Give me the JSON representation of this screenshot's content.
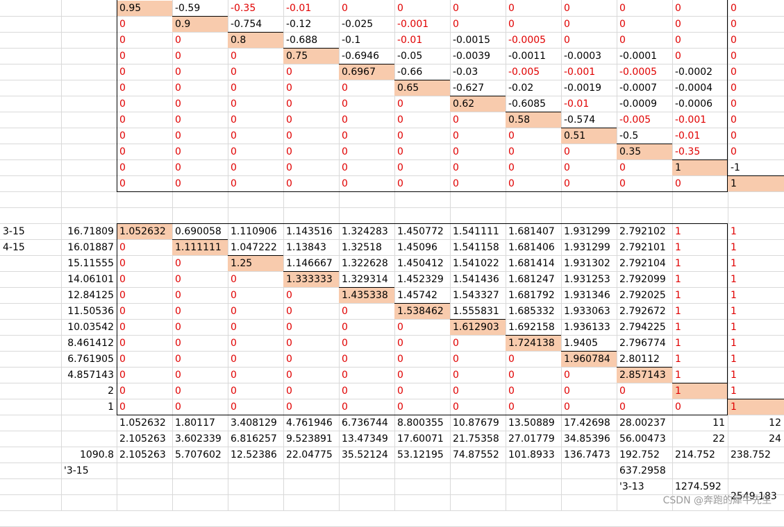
{
  "matrix_a": {
    "rows": [
      [
        "0.95",
        "-0.59",
        "-0.35",
        "-0.01",
        "0",
        "0",
        "0",
        "0",
        "0",
        "0",
        "0",
        "0"
      ],
      [
        "0",
        "0.9",
        "-0.754",
        "-0.12",
        "-0.025",
        "-0.001",
        "0",
        "0",
        "0",
        "0",
        "0",
        "0"
      ],
      [
        "0",
        "0",
        "0.8",
        "-0.688",
        "-0.1",
        "-0.01",
        "-0.0015",
        "-0.0005",
        "0",
        "0",
        "0",
        "0"
      ],
      [
        "0",
        "0",
        "0",
        "0.75",
        "-0.6946",
        "-0.05",
        "-0.0039",
        "-0.0011",
        "-0.0003",
        "-0.0001",
        "0",
        "0"
      ],
      [
        "0",
        "0",
        "0",
        "0",
        "0.6967",
        "-0.66",
        "-0.03",
        "-0.005",
        "-0.001",
        "-0.0005",
        "-0.0002",
        "0"
      ],
      [
        "0",
        "0",
        "0",
        "0",
        "0",
        "0.65",
        "-0.627",
        "-0.02",
        "-0.0019",
        "-0.0007",
        "-0.0004",
        "0"
      ],
      [
        "0",
        "0",
        "0",
        "0",
        "0",
        "0",
        "0.62",
        "-0.6085",
        "-0.01",
        "-0.0009",
        "-0.0006",
        "0"
      ],
      [
        "0",
        "0",
        "0",
        "0",
        "0",
        "0",
        "0",
        "0.58",
        "-0.574",
        "-0.005",
        "-0.001",
        "0"
      ],
      [
        "0",
        "0",
        "0",
        "0",
        "0",
        "0",
        "0",
        "0",
        "0.51",
        "-0.5",
        "-0.01",
        "0"
      ],
      [
        "0",
        "0",
        "0",
        "0",
        "0",
        "0",
        "0",
        "0",
        "0",
        "0.35",
        "-0.35",
        "0"
      ],
      [
        "0",
        "0",
        "0",
        "0",
        "0",
        "0",
        "0",
        "0",
        "0",
        "0",
        "1",
        "-1"
      ],
      [
        "0",
        "0",
        "0",
        "0",
        "0",
        "0",
        "0",
        "0",
        "0",
        "0",
        "0",
        "1"
      ]
    ],
    "red": [
      [
        0,
        0,
        1,
        1,
        1,
        1,
        1,
        1,
        1,
        1,
        1,
        1
      ],
      [
        1,
        0,
        0,
        0,
        0,
        1,
        1,
        1,
        1,
        1,
        1,
        1
      ],
      [
        1,
        1,
        0,
        0,
        0,
        1,
        0,
        1,
        1,
        1,
        1,
        1
      ],
      [
        1,
        1,
        1,
        0,
        0,
        0,
        0,
        0,
        0,
        0,
        1,
        1
      ],
      [
        1,
        1,
        1,
        1,
        0,
        0,
        0,
        1,
        1,
        1,
        0,
        1
      ],
      [
        1,
        1,
        1,
        1,
        1,
        0,
        0,
        0,
        0,
        0,
        0,
        1
      ],
      [
        1,
        1,
        1,
        1,
        1,
        1,
        0,
        0,
        1,
        0,
        0,
        1
      ],
      [
        1,
        1,
        1,
        1,
        1,
        1,
        1,
        0,
        0,
        1,
        1,
        1
      ],
      [
        1,
        1,
        1,
        1,
        1,
        1,
        1,
        1,
        0,
        0,
        1,
        1
      ],
      [
        1,
        1,
        1,
        1,
        1,
        1,
        1,
        1,
        1,
        0,
        1,
        1
      ],
      [
        1,
        1,
        1,
        1,
        1,
        1,
        1,
        1,
        1,
        1,
        0,
        0
      ],
      [
        1,
        1,
        1,
        1,
        1,
        1,
        1,
        1,
        1,
        1,
        1,
        0
      ]
    ]
  },
  "matrix_b": {
    "row_labels": [
      "3-15",
      "4-15",
      "",
      "",
      "",
      "",
      "",
      "",
      "",
      "",
      "",
      ""
    ],
    "row_values": [
      "16.71809",
      "16.01887",
      "15.11555",
      "14.06101",
      "12.84125",
      "11.50536",
      "10.03542",
      "8.461412",
      "6.761905",
      "4.857143",
      "2",
      "1"
    ],
    "rows": [
      [
        "1.052632",
        "0.690058",
        "1.110906",
        "1.143516",
        "1.324283",
        "1.450772",
        "1.541111",
        "1.681407",
        "1.931299",
        "2.792102",
        "1",
        "1"
      ],
      [
        "0",
        "1.111111",
        "1.047222",
        "1.13843",
        "1.32518",
        "1.45096",
        "1.541158",
        "1.681406",
        "1.931299",
        "2.792101",
        "1",
        "1"
      ],
      [
        "0",
        "0",
        "1.25",
        "1.146667",
        "1.322628",
        "1.450412",
        "1.541022",
        "1.681414",
        "1.931302",
        "2.792104",
        "1",
        "1"
      ],
      [
        "0",
        "0",
        "0",
        "1.333333",
        "1.329314",
        "1.452329",
        "1.541436",
        "1.681247",
        "1.931253",
        "2.792099",
        "1",
        "1"
      ],
      [
        "0",
        "0",
        "0",
        "0",
        "1.435338",
        "1.45742",
        "1.543327",
        "1.681792",
        "1.931346",
        "2.792025",
        "1",
        "1"
      ],
      [
        "0",
        "0",
        "0",
        "0",
        "0",
        "1.538462",
        "1.555831",
        "1.685332",
        "1.933063",
        "2.792672",
        "1",
        "1"
      ],
      [
        "0",
        "0",
        "0",
        "0",
        "0",
        "0",
        "1.612903",
        "1.692158",
        "1.936133",
        "2.794225",
        "1",
        "1"
      ],
      [
        "0",
        "0",
        "0",
        "0",
        "0",
        "0",
        "0",
        "1.724138",
        "1.9405",
        "2.796774",
        "1",
        "1"
      ],
      [
        "0",
        "0",
        "0",
        "0",
        "0",
        "0",
        "0",
        "0",
        "1.960784",
        "2.80112",
        "1",
        "1"
      ],
      [
        "0",
        "0",
        "0",
        "0",
        "0",
        "0",
        "0",
        "0",
        "0",
        "2.857143",
        "1",
        "1"
      ],
      [
        "0",
        "0",
        "0",
        "0",
        "0",
        "0",
        "0",
        "0",
        "0",
        "0",
        "1",
        "1"
      ],
      [
        "0",
        "0",
        "0",
        "0",
        "0",
        "0",
        "0",
        "0",
        "0",
        "0",
        "0",
        "1"
      ]
    ]
  },
  "totals": {
    "row1": [
      "1.052632",
      "1.80117",
      "3.408129",
      "4.761946",
      "6.736744",
      "8.800355",
      "10.87679",
      "13.50889",
      "17.42698",
      "28.00237",
      "11",
      "12"
    ],
    "row2": [
      "2.105263",
      "3.602339",
      "6.816257",
      "9.523891",
      "13.47349",
      "17.60071",
      "21.75358",
      "27.01779",
      "34.85396",
      "56.00473",
      "22",
      "24"
    ],
    "row3_label": "1090.8",
    "row3": [
      "2.105263",
      "5.707602",
      "12.52386",
      "22.04775",
      "35.52124",
      "53.12195",
      "74.87552",
      "101.8933",
      "136.7473",
      "192.752",
      "214.752",
      "238.752"
    ],
    "label_3_15": "'3-15",
    "value_637": "637.2958",
    "label_3_13": "'3-13",
    "value_1274": "1274.592",
    "value_2549": "2549.183"
  },
  "watermark": "CSDN @奔跑的犀牛先生",
  "colors": {
    "highlight": "#f8cbad",
    "red_text": "#e00000",
    "grid": "#d9d9d9"
  }
}
